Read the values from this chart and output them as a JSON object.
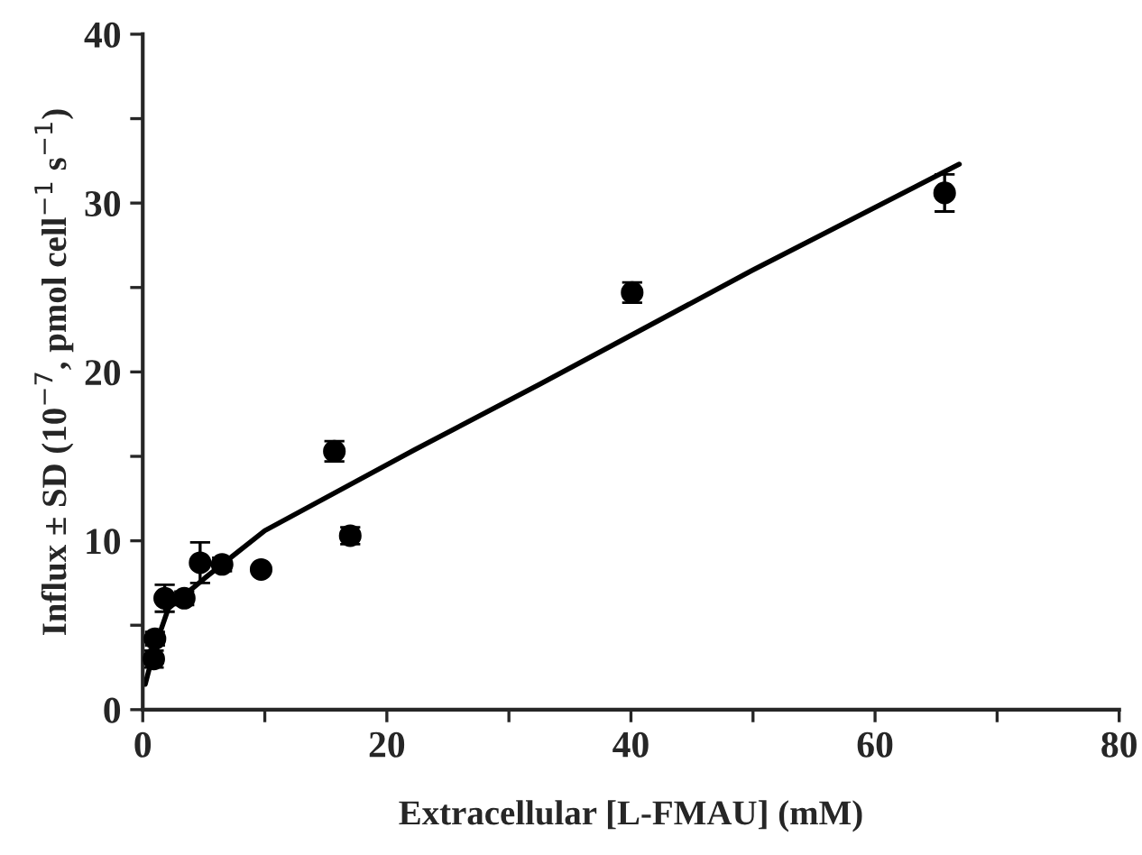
{
  "chart_data": {
    "type": "scatter",
    "xlabel": "Extracellular [L-FMAU] (mM)",
    "ylabel": "Influx ± SD (10$^{−7}$, pmol cell$^{−1}$ s$^{−1}$)",
    "xlim": [
      0,
      80
    ],
    "ylim": [
      0,
      40
    ],
    "xticks": [
      0,
      {
        "value": 10,
        "label": null
      },
      20,
      {
        "value": 30,
        "label": null
      },
      40,
      {
        "value": 50,
        "label": null
      },
      60,
      {
        "value": 70,
        "label": null
      },
      80
    ],
    "yticks": [
      0,
      {
        "value": 5,
        "label": null
      },
      10,
      {
        "value": 15,
        "label": null
      },
      20,
      {
        "value": 25,
        "label": null
      },
      30,
      {
        "value": 35,
        "label": null
      },
      40
    ],
    "grid": false,
    "legend": false,
    "series": [
      {
        "color": "#000000",
        "marker": "circle",
        "x": [
          0.9,
          1.0,
          1.8,
          3.4,
          4.7,
          6.5,
          9.7,
          15.7,
          17.0,
          40.1,
          65.7
        ],
        "values": [
          3.0,
          4.2,
          6.6,
          6.6,
          8.7,
          8.6,
          8.3,
          15.3,
          10.3,
          24.7,
          30.6
        ],
        "errors": [
          0.5,
          0.4,
          0.8,
          0.4,
          1.2,
          0.4,
          null,
          0.6,
          0.5,
          0.6,
          1.1
        ]
      },
      {
        "type": "line",
        "color": "#000000",
        "marker": "none",
        "line_style": "solid",
        "x": [
          0.2,
          1.0,
          2.1,
          5.1,
          10.0,
          22.3,
          32.6,
          49.9,
          66.9
        ],
        "values": [
          1.5,
          3.7,
          6.0,
          7.8,
          10.6,
          15.4,
          19.3,
          26.0,
          32.3
        ]
      }
    ]
  }
}
